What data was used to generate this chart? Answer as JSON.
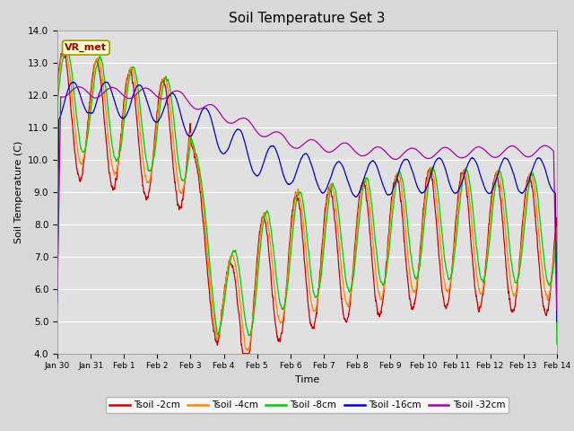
{
  "title": "Soil Temperature Set 3",
  "xlabel": "Time",
  "ylabel": "Soil Temperature (C)",
  "ylim": [
    4.0,
    14.0
  ],
  "yticks": [
    4.0,
    5.0,
    6.0,
    7.0,
    8.0,
    9.0,
    10.0,
    11.0,
    12.0,
    13.0,
    14.0
  ],
  "xtick_labels": [
    "Jan 30",
    "Jan 31",
    "Feb 1",
    "Feb 2",
    "Feb 3",
    "Feb 4",
    "Feb 5",
    "Feb 6",
    "Feb 7",
    "Feb 8",
    "Feb 9",
    "Feb 10",
    "Feb 11",
    "Feb 12",
    "Feb 13",
    "Feb 14"
  ],
  "series_colors": [
    "#cc0000",
    "#ff8800",
    "#00cc00",
    "#0000cc",
    "#aa00aa"
  ],
  "series_labels": [
    "Tsoil -2cm",
    "Tsoil -4cm",
    "Tsoil -8cm",
    "Tsoil -16cm",
    "Tsoil -32cm"
  ],
  "bg_color": "#e0e0e0",
  "grid_color": "#ffffff",
  "legend_box_color": "#ffffcc",
  "legend_box_edge": "#999900",
  "vr_met_label": "VR_met",
  "fig_bg": "#d8d8d8",
  "n_points": 3000
}
